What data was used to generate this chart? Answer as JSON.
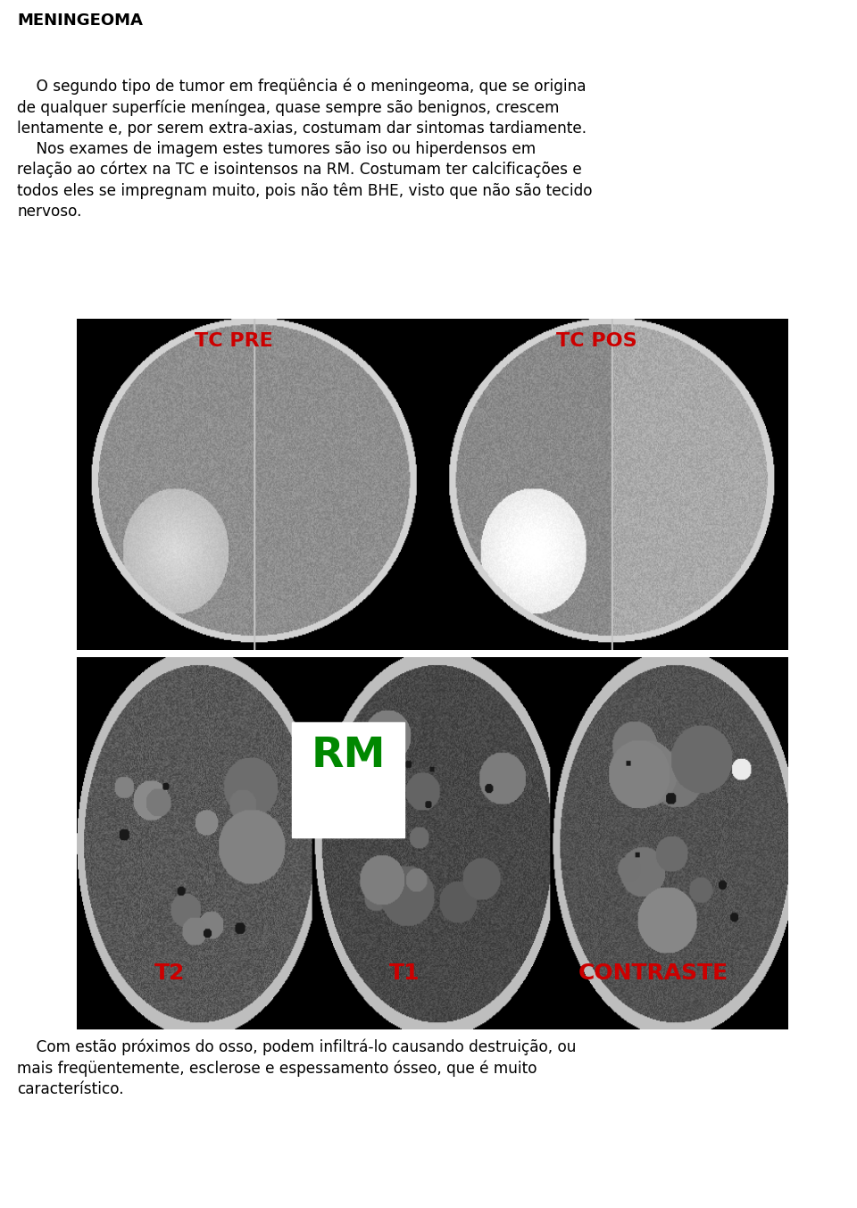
{
  "title": "MENINGEOMA",
  "para1_line1": "    O segundo tipo de tumor em freqüência é o meningeoma, que se origina",
  "para1_line2": "de qualquer superfície meníngea, quase sempre são benignos, crescem",
  "para1_line3": "lentamente e, por serem extra-axias, costumam dar sintomas tardiamente.",
  "para2_line1": "    Nos exames de imagem estes tumores são iso ou hiperdensos em",
  "para2_line2": "relação ao córtex na TC e isointensos na RM. Costumam ter calcificações e",
  "para2_line3": "todos eles se impregnam muito, pois não têm BHE, visto que não são tecido",
  "para2_line4": "nervoso.",
  "para3_line1": "    Com estão próximos do osso, podem infiltrá-lo causando destruição, ou",
  "para3_line2": "mais freqüentemente, esclerose e espessamento ósseo, que é muito",
  "para3_line3": "característico.",
  "tc_pre_label": "TC PRE",
  "tc_pos_label": "TC POS",
  "rm_label": "RM",
  "t2_label": "T2",
  "t1_label": "T1",
  "contraste_label": "CONTRASTE",
  "red_color": "#CC0000",
  "green_color": "#008800",
  "white_color": "#ffffff",
  "black_color": "#000000",
  "title_fontsize": 13,
  "body_fontsize": 12.2,
  "label_fontsize_large": 18,
  "label_fontsize_rm": 34
}
